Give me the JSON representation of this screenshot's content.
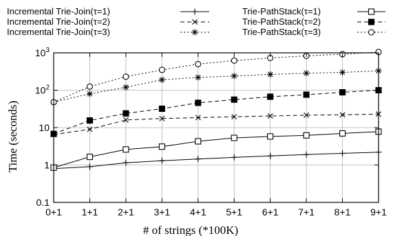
{
  "chart_data": {
    "type": "line",
    "title": "",
    "xlabel": "# of strings (*100K)",
    "ylabel": "Time (seconds)",
    "y_scale": "log",
    "ylim": [
      0.1,
      1000
    ],
    "y_ticks": [
      "0.1",
      "1",
      "10",
      "10^2",
      "10^3"
    ],
    "categories": [
      "0+1",
      "1+1",
      "2+1",
      "3+1",
      "4+1",
      "5+1",
      "6+1",
      "7+1",
      "8+1",
      "9+1"
    ],
    "grid": true,
    "legend_position": "top",
    "series": [
      {
        "name": "Incremental Trie-Join(τ=1)",
        "marker": "plus",
        "line_style": "solid",
        "values": [
          0.8,
          0.9,
          1.15,
          1.3,
          1.45,
          1.6,
          1.75,
          1.9,
          2.05,
          2.2
        ]
      },
      {
        "name": "Trie-PathStack(τ=1)",
        "marker": "open-square",
        "line_style": "solid",
        "values": [
          0.85,
          1.65,
          2.6,
          3.1,
          4.3,
          5.3,
          5.8,
          6.2,
          7.0,
          7.8
        ]
      },
      {
        "name": "Incremental Trie-Join(τ=2)",
        "marker": "x",
        "line_style": "dashed",
        "values": [
          6.5,
          9.0,
          16.0,
          17.5,
          18.5,
          19.5,
          20.5,
          21.5,
          22.0,
          23.0
        ]
      },
      {
        "name": "Trie-PathStack(τ=2)",
        "marker": "filled-square",
        "line_style": "dashed",
        "values": [
          6.8,
          15.5,
          24.0,
          32.0,
          46.0,
          56.0,
          67.0,
          76.0,
          88.0,
          100.0
        ]
      },
      {
        "name": "Incremental Trie-Join(τ=3)",
        "marker": "star",
        "line_style": "dotted",
        "values": [
          48.0,
          80.0,
          120.0,
          190.0,
          220.0,
          240.0,
          265.0,
          285.0,
          300.0,
          330.0
        ]
      },
      {
        "name": "Trie-PathStack(τ=3)",
        "marker": "open-circle",
        "line_style": "dotted",
        "values": [
          48.0,
          125.0,
          230.0,
          350.0,
          500.0,
          620.0,
          730.0,
          830.0,
          920.0,
          1050.0
        ]
      }
    ]
  }
}
